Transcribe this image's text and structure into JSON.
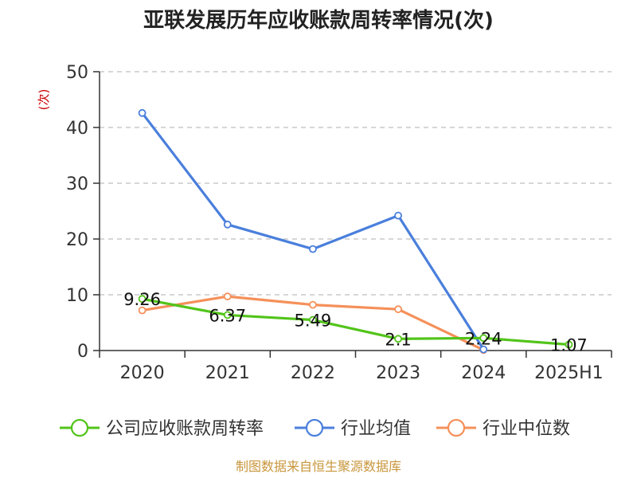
{
  "chart_data": {
    "type": "line",
    "title": "亚联发展历年应收账款周转率情况(次)",
    "ylabel": "(次)",
    "xlabel": "",
    "categories": [
      "2020",
      "2021",
      "2022",
      "2023",
      "2024",
      "2025H1"
    ],
    "ylim": [
      0,
      50
    ],
    "yticks": [
      0,
      10,
      20,
      30,
      40,
      50
    ],
    "grid": true,
    "legend_position": "bottom",
    "series": [
      {
        "name": "公司应收账款周转率",
        "color": "#52c41a",
        "values": [
          9.26,
          6.37,
          5.49,
          2.1,
          2.24,
          1.07
        ],
        "labels": [
          "9.26",
          "6.37",
          "5.49",
          "2.1",
          "2.24",
          "1.07"
        ]
      },
      {
        "name": "行业均值",
        "color": "#4a7fdc",
        "values": [
          42.6,
          22.6,
          18.2,
          24.2,
          0.2,
          null
        ]
      },
      {
        "name": "行业中位数",
        "color": "#f5905a",
        "values": [
          7.2,
          9.7,
          8.2,
          7.4,
          0.1,
          null
        ]
      }
    ],
    "source": "制图数据来自恒生聚源数据库",
    "colors": {
      "ylabel": "#cc0000",
      "source": "#c8963c"
    }
  }
}
